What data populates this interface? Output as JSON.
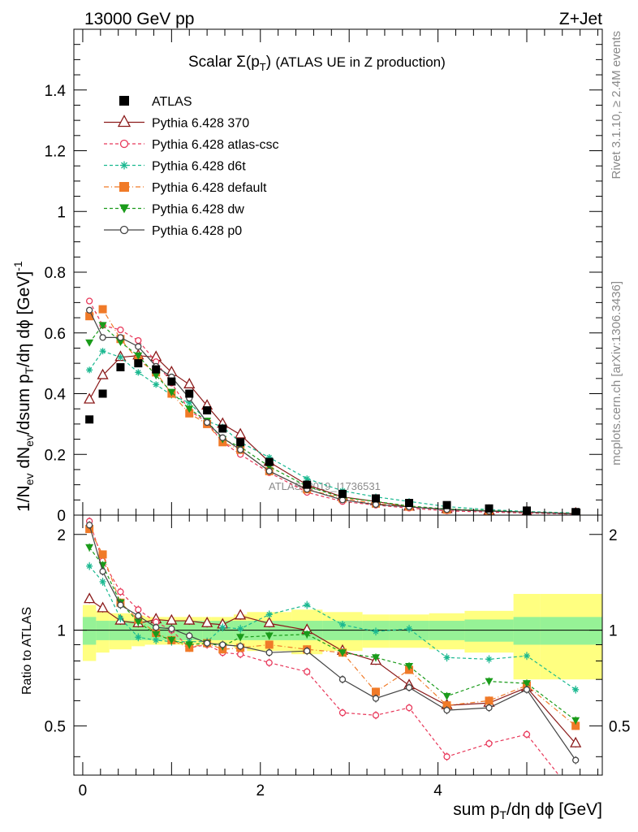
{
  "header": {
    "left": "13000 GeV pp",
    "right": "Z+Jet"
  },
  "side_labels": {
    "rivet": "Rivet 3.1.10, ≥ 2.4M events",
    "mcplots": "mcplots.cern.ch [arXiv:1306.3436]"
  },
  "watermark": "ATLAS_2019_I1736531",
  "chart_data": {
    "type": "scatter",
    "title": "Scalar Σ(p_T) (ATLAS UE in Z production)",
    "xlabel": "sum p_T/dη dϕ [GeV]",
    "ylabel": "1/N_ev dN_ev/dsum p_T/dη dϕ [GeV]^-1",
    "ratio_ylabel": "Ratio to ATLAS",
    "xlim": [
      -0.1,
      5.85
    ],
    "ylim": [
      0,
      1.6
    ],
    "ratio_ylim": [
      0.35,
      2.3
    ],
    "x_ticks": [
      "0",
      "2",
      "4"
    ],
    "y_ticks": [
      "0",
      "0.2",
      "0.4",
      "0.6",
      "0.8",
      "1",
      "1.2",
      "1.4"
    ],
    "ratio_ticks": [
      "0.5",
      "1",
      "2"
    ],
    "x": [
      0.075,
      0.225,
      0.425,
      0.625,
      0.825,
      1.0,
      1.2,
      1.4,
      1.575,
      1.775,
      2.1,
      2.525,
      2.925,
      3.3,
      3.675,
      4.1,
      4.575,
      5.0,
      5.55
    ],
    "bin_edges": [
      0.0,
      0.15,
      0.3,
      0.55,
      0.7,
      0.95,
      1.05,
      1.35,
      1.45,
      1.7,
      1.85,
      2.35,
      2.7,
      3.15,
      3.45,
      3.9,
      4.3,
      4.85,
      5.15,
      5.95
    ],
    "band_inner": [
      0.1,
      0.07,
      0.07,
      0.07,
      0.07,
      0.07,
      0.07,
      0.07,
      0.07,
      0.07,
      0.07,
      0.07,
      0.07,
      0.07,
      0.07,
      0.07,
      0.08,
      0.1,
      0.1
    ],
    "band_outer": [
      0.2,
      0.15,
      0.13,
      0.11,
      0.1,
      0.1,
      0.1,
      0.1,
      0.1,
      0.12,
      0.14,
      0.16,
      0.14,
      0.12,
      0.12,
      0.13,
      0.15,
      0.3,
      0.3
    ],
    "series": [
      {
        "name": "ATLAS",
        "color": "#000000",
        "marker": "filled-square",
        "dash": "none",
        "values": [
          0.315,
          0.4,
          0.487,
          0.5,
          0.48,
          0.44,
          0.4,
          0.345,
          0.285,
          0.24,
          0.175,
          0.1,
          0.07,
          0.055,
          0.04,
          0.033,
          0.022,
          0.015,
          0.01
        ],
        "ratio": [
          1,
          1,
          1,
          1,
          1,
          1,
          1,
          1,
          1,
          1,
          1,
          1,
          1,
          1,
          1,
          1,
          1,
          1,
          1
        ]
      },
      {
        "name": "Pythia 6.428 370",
        "color": "#8b1a1a",
        "marker": "open-triangle",
        "dash": "none",
        "values": [
          0.38,
          0.46,
          0.52,
          0.525,
          0.52,
          0.47,
          0.43,
          0.36,
          0.3,
          0.265,
          0.175,
          0.1,
          0.06,
          0.045,
          0.027,
          0.019,
          0.014,
          0.01,
          0.005
        ],
        "ratio": [
          1.25,
          1.17,
          1.07,
          1.05,
          1.08,
          1.07,
          1.07,
          1.05,
          1.04,
          1.11,
          1.05,
          1.0,
          0.86,
          0.8,
          0.67,
          0.58,
          0.59,
          0.66,
          0.44
        ]
      },
      {
        "name": "Pythia 6.428 atlas-csc",
        "color": "#e8385a",
        "marker": "open-circle",
        "dash": "4,3",
        "values": [
          0.705,
          0.625,
          0.61,
          0.575,
          0.505,
          0.435,
          0.345,
          0.305,
          0.24,
          0.2,
          0.14,
          0.075,
          0.045,
          0.033,
          0.023,
          0.014,
          0.01,
          0.007,
          0.003
        ],
        "ratio": [
          2.2,
          1.65,
          1.32,
          1.16,
          1.06,
          1.0,
          0.88,
          0.9,
          0.85,
          0.84,
          0.79,
          0.74,
          0.55,
          0.54,
          0.57,
          0.4,
          0.44,
          0.47,
          0.3
        ]
      },
      {
        "name": "Pythia 6.428 d6t",
        "color": "#1ab890",
        "marker": "asterisk",
        "dash": "4,3",
        "values": [
          0.478,
          0.54,
          0.52,
          0.47,
          0.43,
          0.395,
          0.37,
          0.31,
          0.29,
          0.24,
          0.19,
          0.12,
          0.08,
          0.06,
          0.045,
          0.028,
          0.018,
          0.012,
          0.007
        ],
        "ratio": [
          1.59,
          1.42,
          1.09,
          0.95,
          0.93,
          0.92,
          0.92,
          0.92,
          1.02,
          1.01,
          1.12,
          1.2,
          1.04,
          0.99,
          1.01,
          0.82,
          0.81,
          0.83,
          0.65
        ]
      },
      {
        "name": "Pythia 6.428 default",
        "color": "#f07a28",
        "marker": "filled-square",
        "dash": "6,3,1,3",
        "values": [
          0.655,
          0.678,
          0.58,
          0.51,
          0.47,
          0.4,
          0.335,
          0.3,
          0.24,
          0.215,
          0.145,
          0.085,
          0.055,
          0.038,
          0.028,
          0.018,
          0.013,
          0.01,
          0.005
        ],
        "ratio": [
          2.08,
          1.73,
          1.22,
          1.08,
          0.98,
          0.93,
          0.88,
          0.91,
          0.87,
          0.88,
          0.9,
          0.87,
          0.85,
          0.64,
          0.75,
          0.58,
          0.6,
          0.67,
          0.5
        ]
      },
      {
        "name": "Pythia 6.428 dw",
        "color": "#1a9b1a",
        "marker": "filled-triangle-down",
        "dash": "4,3",
        "values": [
          0.568,
          0.625,
          0.57,
          0.525,
          0.46,
          0.405,
          0.35,
          0.31,
          0.25,
          0.225,
          0.16,
          0.095,
          0.058,
          0.045,
          0.03,
          0.02,
          0.015,
          0.01,
          0.005
        ],
        "ratio": [
          1.82,
          1.6,
          1.22,
          1.06,
          0.97,
          0.93,
          0.9,
          0.91,
          0.89,
          0.95,
          0.96,
          0.97,
          0.85,
          0.82,
          0.77,
          0.62,
          0.69,
          0.68,
          0.52
        ]
      },
      {
        "name": "Pythia 6.428 p0",
        "color": "#444444",
        "marker": "open-circle",
        "dash": "none",
        "values": [
          0.675,
          0.585,
          0.585,
          0.555,
          0.49,
          0.455,
          0.385,
          0.305,
          0.255,
          0.215,
          0.145,
          0.085,
          0.05,
          0.035,
          0.027,
          0.018,
          0.013,
          0.01,
          0.004
        ],
        "ratio": [
          2.14,
          1.53,
          1.2,
          1.11,
          1.02,
          1.01,
          0.96,
          0.91,
          0.9,
          0.89,
          0.85,
          0.86,
          0.7,
          0.61,
          0.66,
          0.56,
          0.57,
          0.65,
          0.39
        ]
      }
    ]
  }
}
